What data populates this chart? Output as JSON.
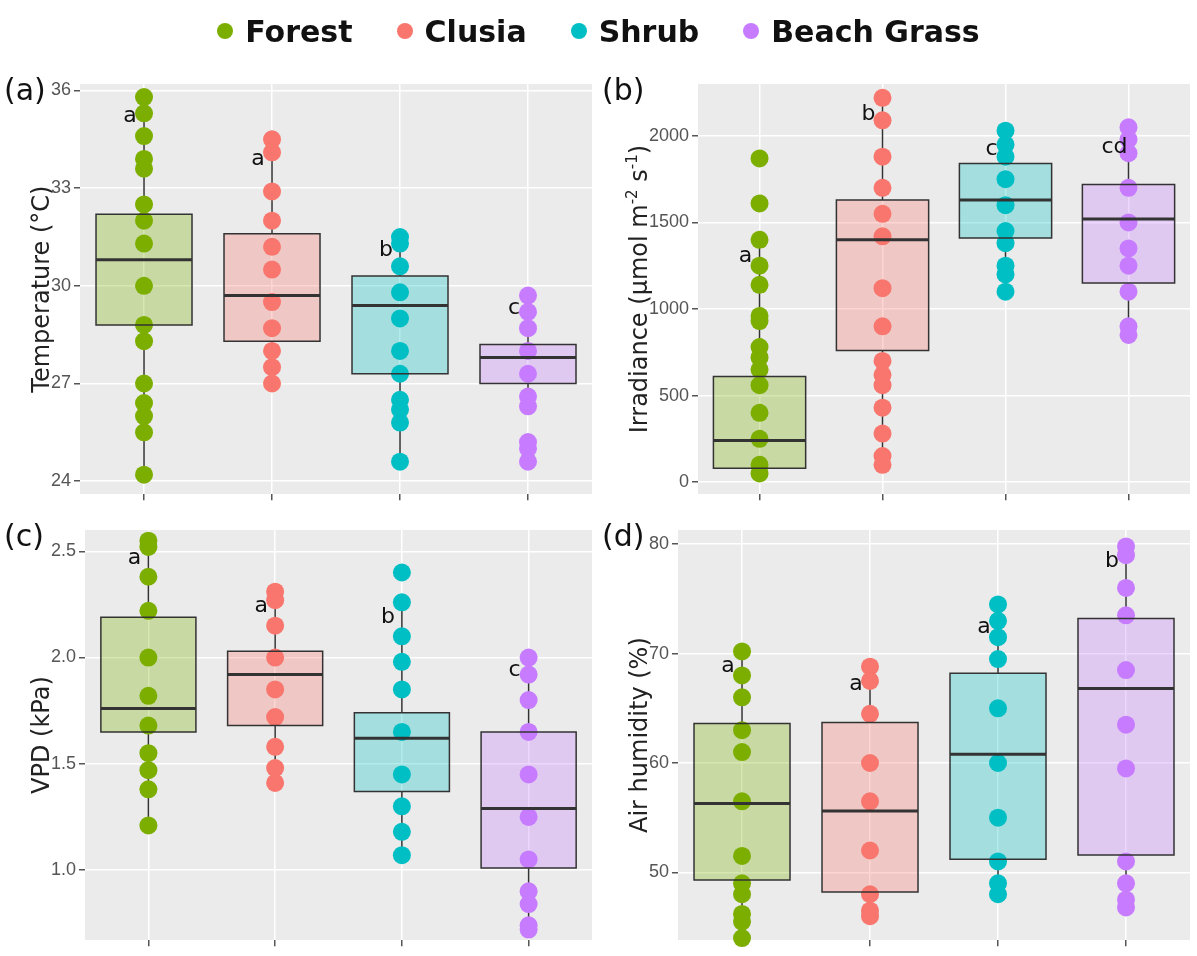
{
  "chart_data": [
    {
      "type": "box",
      "title": "(a)",
      "ylabel": "Temperature (°C)",
      "legend": "top",
      "grid": true,
      "tick_labels": "y",
      "marker": "circle",
      "categories": [
        null,
        null,
        null,
        null
      ],
      "ylim": [
        23.6,
        36.2
      ],
      "yticks": [
        24,
        27,
        30,
        33,
        36
      ],
      "series": [
        {
          "name": "Forest",
          "color": "#7cae00",
          "boxes": [
            {
              "low": 24.2,
              "q1": 28.8,
              "median": 30.8,
              "q3": 32.2,
              "high": 35.6,
              "outliers": [
                35.8,
                35.3,
                34.6,
                33.9,
                33.6,
                32.5,
                32.0,
                31.3,
                30.0,
                28.8,
                28.3,
                27.0,
                26.4,
                26.0,
                25.5,
                24.2
              ]
            },
            null,
            null,
            null
          ]
        },
        {
          "name": "Clusia",
          "color": "#f8766d",
          "boxes": [
            null,
            {
              "low": 27.0,
              "q1": 28.3,
              "median": 29.7,
              "q3": 31.6,
              "high": 34.3,
              "outliers": [
                34.5,
                34.1,
                32.9,
                32.0,
                31.2,
                30.5,
                29.5,
                28.7,
                28.0,
                27.5,
                27.0
              ]
            },
            null,
            null
          ]
        },
        {
          "name": "Shrub",
          "color": "#00bfc4",
          "boxes": [
            null,
            null,
            {
              "low": 24.6,
              "q1": 27.3,
              "median": 29.4,
              "q3": 30.3,
              "high": 31.5,
              "outliers": [
                31.5,
                31.3,
                30.6,
                29.8,
                29.0,
                28.0,
                27.3,
                26.5,
                26.2,
                25.8,
                24.6
              ]
            },
            null
          ]
        },
        {
          "name": "Beach Grass",
          "color": "#c77cff",
          "boxes": [
            null,
            null,
            null,
            {
              "low": 26.3,
              "q1": 27.0,
              "median": 27.8,
              "q3": 28.2,
              "high": 29.7,
              "outliers": [
                29.7,
                29.2,
                28.7,
                28.0,
                27.3,
                26.6,
                26.3,
                25.2,
                25.0,
                24.6
              ]
            }
          ]
        }
      ],
      "annotations": [
        "a",
        "a",
        "b",
        "c"
      ]
    },
    {
      "type": "box",
      "title": "(b)",
      "ylabel": "Irradiance (µmol m$^{-2}$ s$^{-1}$)",
      "grid": true,
      "tick_labels": "y",
      "marker": "circle",
      "categories": [
        null,
        null,
        null,
        null
      ],
      "ylim": [
        -70,
        2300
      ],
      "yticks": [
        0,
        500,
        1000,
        1500,
        2000
      ],
      "series": [
        {
          "color": "#7cae00",
          "boxes": [
            {
              "low": 50,
              "q1": 80,
              "median": 240,
              "q3": 610,
              "high": 1380,
              "outliers": [
                1870,
                1610,
                1400,
                1250,
                1140,
                960,
                930,
                780,
                720,
                650,
                560,
                400,
                250,
                100,
                50
              ]
            },
            null,
            null,
            null
          ]
        },
        {
          "color": "#f8766d",
          "boxes": [
            null,
            {
              "low": 100,
              "q1": 760,
              "median": 1400,
              "q3": 1630,
              "high": 2200,
              "outliers": [
                2220,
                2090,
                1880,
                1700,
                1550,
                1420,
                1120,
                900,
                700,
                620,
                560,
                430,
                280,
                150,
                100
              ]
            },
            null,
            null
          ]
        },
        {
          "color": "#00bfc4",
          "boxes": [
            null,
            null,
            {
              "low": 1090,
              "q1": 1410,
              "median": 1630,
              "q3": 1840,
              "high": 2000,
              "outliers": [
                2030,
                1950,
                1880,
                1750,
                1600,
                1450,
                1380,
                1250,
                1200,
                1100
              ]
            },
            null
          ]
        },
        {
          "color": "#c77cff",
          "boxes": [
            null,
            null,
            null,
            {
              "low": 810,
              "q1": 1150,
              "median": 1520,
              "q3": 1720,
              "high": 2010,
              "outliers": [
                2050,
                1980,
                1900,
                1700,
                1500,
                1350,
                1250,
                1100,
                900,
                850
              ]
            }
          ]
        }
      ],
      "annotations": [
        "a",
        "b",
        "c",
        "cd"
      ]
    },
    {
      "type": "box",
      "title": "(c)",
      "ylabel": "VPD (kPa)",
      "grid": true,
      "tick_labels": "y",
      "marker": "circle",
      "categories": [
        null,
        null,
        null,
        null
      ],
      "ylim": [
        0.67,
        2.6
      ],
      "yticks": [
        {
          "value": 1,
          "label": "1.0"
        },
        1.5,
        {
          "value": 2,
          "label": "2.0"
        },
        2.5
      ],
      "series": [
        {
          "color": "#7cae00",
          "boxes": [
            {
              "low": 1.22,
              "q1": 1.65,
              "median": 1.76,
              "q3": 2.19,
              "high": 2.53,
              "outliers": [
                2.55,
                2.52,
                2.38,
                2.22,
                2.0,
                1.82,
                1.68,
                1.55,
                1.47,
                1.38,
                1.21
              ]
            },
            null,
            null,
            null
          ]
        },
        {
          "color": "#f8766d",
          "boxes": [
            null,
            {
              "low": 1.4,
              "q1": 1.68,
              "median": 1.92,
              "q3": 2.03,
              "high": 2.3,
              "outliers": [
                2.31,
                2.27,
                2.15,
                2.0,
                1.85,
                1.72,
                1.58,
                1.48,
                1.41
              ]
            },
            null,
            null
          ]
        },
        {
          "color": "#00bfc4",
          "boxes": [
            null,
            null,
            {
              "low": 1.07,
              "q1": 1.37,
              "median": 1.62,
              "q3": 1.74,
              "high": 2.25,
              "outliers": [
                2.4,
                2.26,
                2.1,
                1.98,
                1.85,
                1.65,
                1.45,
                1.3,
                1.18,
                1.07
              ]
            },
            null
          ]
        },
        {
          "color": "#c77cff",
          "boxes": [
            null,
            null,
            null,
            {
              "low": 0.71,
              "q1": 1.01,
              "median": 1.29,
              "q3": 1.65,
              "high": 2.0,
              "outliers": [
                2.0,
                1.92,
                1.8,
                1.65,
                1.45,
                1.25,
                1.05,
                0.9,
                0.84,
                0.74,
                0.72
              ]
            }
          ]
        }
      ],
      "annotations": [
        "a",
        "a",
        "b",
        "c"
      ]
    },
    {
      "type": "box",
      "title": "(d)",
      "ylabel": "Air humidity (%)",
      "grid": true,
      "tick_labels": "y",
      "marker": "circle",
      "categories": [
        null,
        null,
        null,
        null
      ],
      "ylim": [
        43.8,
        81.3
      ],
      "yticks": [
        50,
        60,
        70,
        80
      ],
      "series": [
        {
          "color": "#7cae00",
          "boxes": [
            {
              "low": 44.5,
              "q1": 49.3,
              "median": 56.3,
              "q3": 63.6,
              "high": 70.0,
              "outliers": [
                70.2,
                68.0,
                66.0,
                63.0,
                61.0,
                56.5,
                51.5,
                49.0,
                48.0,
                46.2,
                45.5,
                44.0
              ]
            },
            null,
            null,
            null
          ]
        },
        {
          "color": "#f8766d",
          "boxes": [
            null,
            {
              "low": 46.8,
              "q1": 48.2,
              "median": 55.6,
              "q3": 63.7,
              "high": 68.4,
              "outliers": [
                68.8,
                67.5,
                64.5,
                60.0,
                56.5,
                52.0,
                48.0,
                46.5,
                46.0
              ]
            },
            null,
            null
          ]
        },
        {
          "color": "#00bfc4",
          "boxes": [
            null,
            null,
            {
              "low": 47.8,
              "q1": 51.2,
              "median": 60.8,
              "q3": 68.2,
              "high": 73.6,
              "outliers": [
                74.5,
                73.0,
                71.5,
                69.5,
                65.0,
                60.0,
                55.0,
                51.0,
                49.0,
                48.0
              ]
            },
            null
          ]
        },
        {
          "color": "#c77cff",
          "boxes": [
            null,
            null,
            null,
            {
              "low": 47.0,
              "q1": 51.6,
              "median": 66.8,
              "q3": 73.2,
              "high": 79.6,
              "outliers": [
                79.8,
                79.0,
                76.0,
                73.5,
                68.5,
                63.5,
                59.5,
                51.0,
                49.0,
                47.5,
                46.8
              ]
            }
          ]
        }
      ],
      "annotations": [
        "a",
        "a",
        "a",
        "b"
      ]
    }
  ]
}
